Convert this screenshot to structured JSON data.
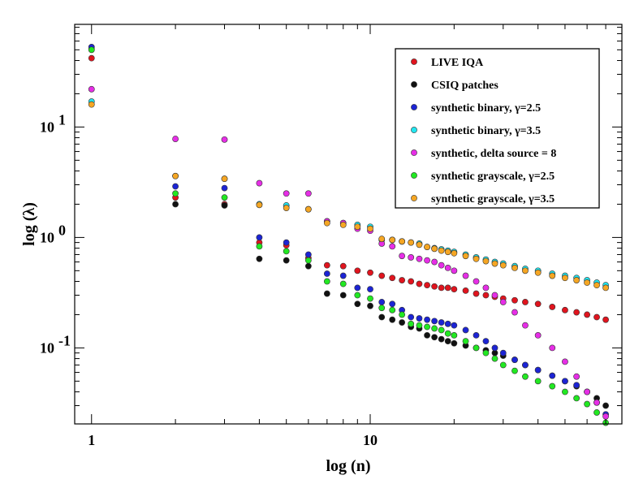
{
  "chart_data": {
    "type": "scatter",
    "title": "",
    "xlabel": "log (n)",
    "ylabel": "log (λ)",
    "xscale": "log",
    "yscale": "log",
    "xlim": [
      0.87,
      80
    ],
    "ylim": [
      0.0205,
      85
    ],
    "x_ticks": [
      {
        "value": 1,
        "label": "1"
      },
      {
        "value": 10,
        "label": "10"
      }
    ],
    "y_ticks": [
      {
        "value": 0.1,
        "base": "10",
        "exp": "-1"
      },
      {
        "value": 1,
        "base": "10",
        "exp": "0"
      },
      {
        "value": 10,
        "base": "10",
        "exp": "1"
      }
    ],
    "legend_position": "top-right",
    "series": [
      {
        "name": "LIVE IQA",
        "color": "#e0141e",
        "points": [
          [
            1,
            42
          ],
          [
            2,
            2.3
          ],
          [
            3,
            2.0
          ],
          [
            4,
            0.9
          ],
          [
            5,
            0.85
          ],
          [
            6,
            0.65
          ],
          [
            7,
            0.56
          ],
          [
            8,
            0.55
          ],
          [
            9,
            0.5
          ],
          [
            10,
            0.48
          ],
          [
            11,
            0.45
          ],
          [
            12,
            0.43
          ],
          [
            13,
            0.41
          ],
          [
            14,
            0.4
          ],
          [
            15,
            0.38
          ],
          [
            16,
            0.37
          ],
          [
            17,
            0.36
          ],
          [
            18,
            0.35
          ],
          [
            19,
            0.35
          ],
          [
            20,
            0.34
          ],
          [
            22,
            0.33
          ],
          [
            24,
            0.31
          ],
          [
            26,
            0.3
          ],
          [
            28,
            0.29
          ],
          [
            30,
            0.28
          ],
          [
            33,
            0.27
          ],
          [
            36,
            0.26
          ],
          [
            40,
            0.25
          ],
          [
            45,
            0.235
          ],
          [
            50,
            0.22
          ],
          [
            55,
            0.21
          ],
          [
            60,
            0.2
          ],
          [
            65,
            0.19
          ],
          [
            70,
            0.18
          ]
        ]
      },
      {
        "name": "CSIQ patches",
        "color": "#111111",
        "points": [
          [
            1,
            51
          ],
          [
            2,
            2.0
          ],
          [
            3,
            1.95
          ],
          [
            4,
            0.64
          ],
          [
            5,
            0.62
          ],
          [
            6,
            0.55
          ],
          [
            7,
            0.31
          ],
          [
            8,
            0.3
          ],
          [
            9,
            0.25
          ],
          [
            10,
            0.24
          ],
          [
            11,
            0.19
          ],
          [
            12,
            0.18
          ],
          [
            13,
            0.17
          ],
          [
            14,
            0.155
          ],
          [
            15,
            0.15
          ],
          [
            16,
            0.13
          ],
          [
            17,
            0.125
          ],
          [
            18,
            0.12
          ],
          [
            19,
            0.115
          ],
          [
            20,
            0.11
          ],
          [
            22,
            0.105
          ],
          [
            24,
            0.1
          ],
          [
            26,
            0.095
          ],
          [
            28,
            0.09
          ],
          [
            30,
            0.085
          ],
          [
            33,
            0.078
          ],
          [
            36,
            0.07
          ],
          [
            40,
            0.063
          ],
          [
            45,
            0.056
          ],
          [
            50,
            0.05
          ],
          [
            55,
            0.045
          ],
          [
            60,
            0.04
          ],
          [
            65,
            0.035
          ],
          [
            70,
            0.03
          ]
        ]
      },
      {
        "name": "synthetic binary, γ=2.5",
        "color": "#1c24d4",
        "points": [
          [
            1,
            53
          ],
          [
            2,
            2.9
          ],
          [
            3,
            2.8
          ],
          [
            4,
            1.0
          ],
          [
            5,
            0.9
          ],
          [
            6,
            0.7
          ],
          [
            7,
            0.47
          ],
          [
            8,
            0.45
          ],
          [
            9,
            0.35
          ],
          [
            10,
            0.34
          ],
          [
            11,
            0.26
          ],
          [
            12,
            0.25
          ],
          [
            13,
            0.22
          ],
          [
            14,
            0.19
          ],
          [
            15,
            0.185
          ],
          [
            16,
            0.18
          ],
          [
            17,
            0.175
          ],
          [
            18,
            0.17
          ],
          [
            19,
            0.165
          ],
          [
            20,
            0.16
          ],
          [
            22,
            0.145
          ],
          [
            24,
            0.13
          ],
          [
            26,
            0.115
          ],
          [
            28,
            0.1
          ],
          [
            30,
            0.09
          ],
          [
            33,
            0.078
          ],
          [
            36,
            0.07
          ],
          [
            40,
            0.063
          ],
          [
            45,
            0.056
          ],
          [
            50,
            0.05
          ],
          [
            55,
            0.046
          ],
          [
            60,
            0.04
          ],
          [
            65,
            0.032
          ],
          [
            70,
            0.025
          ]
        ]
      },
      {
        "name": "synthetic binary, γ=3.5",
        "color": "#22e6f0",
        "points": [
          [
            1,
            17
          ],
          [
            2,
            3.6
          ],
          [
            3,
            3.4
          ],
          [
            4,
            2.0
          ],
          [
            5,
            1.95
          ],
          [
            6,
            1.8
          ],
          [
            7,
            1.4
          ],
          [
            8,
            1.35
          ],
          [
            9,
            1.3
          ],
          [
            10,
            1.25
          ],
          [
            11,
            0.95
          ],
          [
            12,
            0.95
          ],
          [
            13,
            0.92
          ],
          [
            14,
            0.9
          ],
          [
            15,
            0.88
          ],
          [
            16,
            0.82
          ],
          [
            17,
            0.8
          ],
          [
            18,
            0.78
          ],
          [
            19,
            0.76
          ],
          [
            20,
            0.74
          ],
          [
            22,
            0.7
          ],
          [
            24,
            0.66
          ],
          [
            26,
            0.63
          ],
          [
            28,
            0.6
          ],
          [
            30,
            0.58
          ],
          [
            33,
            0.55
          ],
          [
            36,
            0.52
          ],
          [
            40,
            0.5
          ],
          [
            45,
            0.47
          ],
          [
            50,
            0.45
          ],
          [
            55,
            0.43
          ],
          [
            60,
            0.41
          ],
          [
            65,
            0.39
          ],
          [
            70,
            0.37
          ]
        ]
      },
      {
        "name": "synthetic, delta source = 8",
        "color": "#e62ee6",
        "points": [
          [
            1,
            22
          ],
          [
            2,
            7.8
          ],
          [
            3,
            7.7
          ],
          [
            4,
            3.1
          ],
          [
            5,
            2.5
          ],
          [
            6,
            2.5
          ],
          [
            7,
            1.4
          ],
          [
            8,
            1.35
          ],
          [
            9,
            1.2
          ],
          [
            10,
            1.15
          ],
          [
            11,
            0.88
          ],
          [
            12,
            0.83
          ],
          [
            13,
            0.68
          ],
          [
            14,
            0.66
          ],
          [
            15,
            0.64
          ],
          [
            16,
            0.62
          ],
          [
            17,
            0.6
          ],
          [
            18,
            0.56
          ],
          [
            19,
            0.53
          ],
          [
            20,
            0.5
          ],
          [
            22,
            0.45
          ],
          [
            24,
            0.4
          ],
          [
            26,
            0.35
          ],
          [
            28,
            0.3
          ],
          [
            30,
            0.26
          ],
          [
            33,
            0.21
          ],
          [
            36,
            0.16
          ],
          [
            40,
            0.13
          ],
          [
            45,
            0.1
          ],
          [
            50,
            0.075
          ],
          [
            55,
            0.055
          ],
          [
            60,
            0.04
          ],
          [
            65,
            0.032
          ],
          [
            70,
            0.024
          ]
        ]
      },
      {
        "name": "synthetic grayscale, γ=2.5",
        "color": "#22e822",
        "points": [
          [
            1,
            50
          ],
          [
            2,
            2.5
          ],
          [
            3,
            2.3
          ],
          [
            4,
            0.83
          ],
          [
            5,
            0.75
          ],
          [
            6,
            0.62
          ],
          [
            7,
            0.4
          ],
          [
            8,
            0.38
          ],
          [
            9,
            0.3
          ],
          [
            10,
            0.28
          ],
          [
            11,
            0.23
          ],
          [
            12,
            0.22
          ],
          [
            13,
            0.2
          ],
          [
            14,
            0.165
          ],
          [
            15,
            0.16
          ],
          [
            16,
            0.155
          ],
          [
            17,
            0.15
          ],
          [
            18,
            0.145
          ],
          [
            19,
            0.135
          ],
          [
            20,
            0.13
          ],
          [
            22,
            0.115
          ],
          [
            24,
            0.1
          ],
          [
            26,
            0.09
          ],
          [
            28,
            0.08
          ],
          [
            30,
            0.07
          ],
          [
            33,
            0.062
          ],
          [
            36,
            0.055
          ],
          [
            40,
            0.05
          ],
          [
            45,
            0.045
          ],
          [
            50,
            0.04
          ],
          [
            55,
            0.035
          ],
          [
            60,
            0.031
          ],
          [
            65,
            0.026
          ],
          [
            70,
            0.021
          ]
        ]
      },
      {
        "name": "synthetic grayscale, γ=3.5",
        "color": "#f5a623",
        "points": [
          [
            1,
            16
          ],
          [
            2,
            3.6
          ],
          [
            3,
            3.4
          ],
          [
            4,
            1.97
          ],
          [
            5,
            1.85
          ],
          [
            6,
            1.8
          ],
          [
            7,
            1.35
          ],
          [
            8,
            1.3
          ],
          [
            9,
            1.25
          ],
          [
            10,
            1.2
          ],
          [
            11,
            0.97
          ],
          [
            12,
            0.95
          ],
          [
            13,
            0.92
          ],
          [
            14,
            0.9
          ],
          [
            15,
            0.86
          ],
          [
            16,
            0.82
          ],
          [
            17,
            0.79
          ],
          [
            18,
            0.76
          ],
          [
            19,
            0.74
          ],
          [
            20,
            0.72
          ],
          [
            22,
            0.68
          ],
          [
            24,
            0.64
          ],
          [
            26,
            0.61
          ],
          [
            28,
            0.58
          ],
          [
            30,
            0.56
          ],
          [
            33,
            0.53
          ],
          [
            36,
            0.5
          ],
          [
            40,
            0.48
          ],
          [
            45,
            0.45
          ],
          [
            50,
            0.43
          ],
          [
            55,
            0.41
          ],
          [
            60,
            0.39
          ],
          [
            65,
            0.37
          ],
          [
            70,
            0.35
          ]
        ]
      }
    ]
  }
}
